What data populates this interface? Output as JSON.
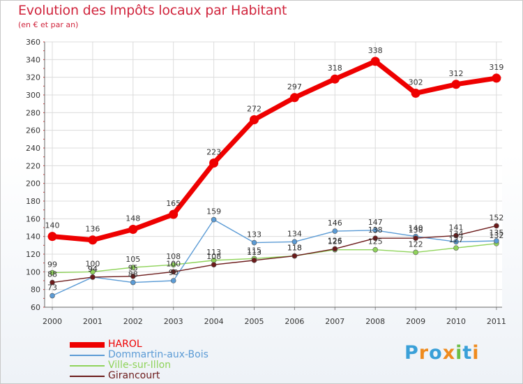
{
  "title": "Evolution des Impôts locaux par Habitant",
  "subtitle": "(en € et par an)",
  "logo": {
    "text": "Proxiti",
    "letters": [
      "P",
      "r",
      "o",
      "x",
      "i",
      "t",
      "i"
    ],
    "colors": [
      "#3aa0d8",
      "#ef8b1e",
      "#3aa0d8",
      "#ef8b1e",
      "#6cbe45",
      "#3aa0d8",
      "#ef8b1e"
    ]
  },
  "chart_data": {
    "type": "line",
    "title": "Evolution des Impôts locaux par Habitant",
    "subtitle": "(en € et par an)",
    "xlabel": "",
    "ylabel": "",
    "x": [
      "2000",
      "2001",
      "2002",
      "2003",
      "2004",
      "2005",
      "2006",
      "2007",
      "2008",
      "2009",
      "2010",
      "2011"
    ],
    "ylim": [
      60,
      360
    ],
    "yticks": [
      60,
      80,
      100,
      120,
      140,
      160,
      180,
      200,
      220,
      240,
      260,
      280,
      300,
      320,
      340,
      360
    ],
    "grid": true,
    "legend_position": "bottom-left",
    "series": [
      {
        "name": "HAROL",
        "color": "#ee0000",
        "values": [
          140,
          136,
          148,
          165,
          223,
          272,
          297,
          318,
          338,
          302,
          312,
          319
        ],
        "labels": [
          "140",
          "136",
          "148",
          "165",
          "223",
          "272",
          "297",
          "318",
          "338",
          "302",
          "312",
          "319"
        ]
      },
      {
        "name": "Dommartin-aux-Bois",
        "color": "#5b9bd5",
        "values": [
          73,
          94,
          88,
          90,
          159,
          133,
          134,
          146,
          147,
          140,
          134,
          135
        ],
        "labels": [
          "73",
          "94",
          "88",
          "90",
          "159",
          "133",
          "134",
          "146",
          "147",
          "140",
          "134",
          "135"
        ]
      },
      {
        "name": "Ville-sur-Illon",
        "color": "#8fd35a",
        "values": [
          99,
          100,
          105,
          108,
          113,
          115,
          118,
          125,
          125,
          122,
          127,
          132
        ],
        "labels": [
          "99",
          "100",
          "105",
          "108",
          "113",
          "115",
          "118",
          "125",
          "125",
          "122",
          "127",
          "132"
        ]
      },
      {
        "name": "Girancourt",
        "color": "#6b1a1a",
        "values": [
          88,
          94,
          95,
          100,
          108,
          113,
          118,
          126,
          138,
          138,
          141,
          152
        ],
        "labels": [
          "88",
          "94",
          "95",
          "100",
          "108",
          "113",
          "118",
          "126",
          "138",
          "138",
          "141",
          "152"
        ]
      }
    ]
  }
}
